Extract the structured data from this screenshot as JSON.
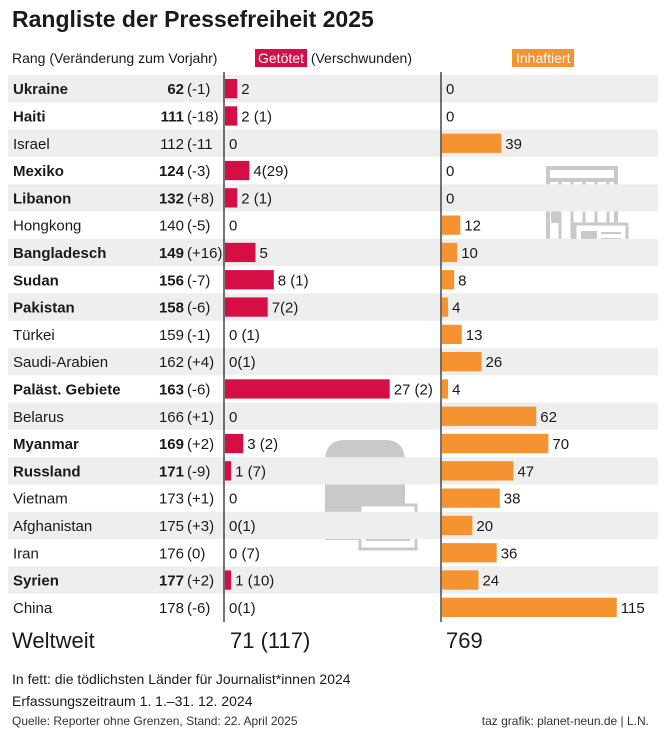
{
  "title": "Rangliste der Pressefreiheit 2025",
  "header": {
    "rank": "Rang (Veränderung zum Vorjahr)",
    "killed_box": "Getötet",
    "killed_rest": "(Verschwunden)",
    "jailed": "Inhaftiert"
  },
  "colors": {
    "killed": "#d50f45",
    "jailed": "#f59330",
    "illustration": "#c9c9c9"
  },
  "icons": {
    "killed_panel": "gravestone-newspaper-icon",
    "jailed_panel": "prison-cell-newspaper-icon"
  },
  "chart_data": {
    "type": "bar",
    "categories": [
      "Ukraine",
      "Haiti",
      "Israel",
      "Mexiko",
      "Libanon",
      "Hongkong",
      "Bangladesch",
      "Sudan",
      "Pakistan",
      "Türkei",
      "Saudi-Arabien",
      "Paläst. Gebiete",
      "Belarus",
      "Myanmar",
      "Russland",
      "Vietnam",
      "Afghanistan",
      "Iran",
      "Syrien",
      "China"
    ],
    "rank": [
      "62",
      "111",
      "112",
      "124",
      "132",
      "140",
      "149",
      "156",
      "158",
      "159",
      "162",
      "163",
      "166",
      "169",
      "171",
      "173",
      "175",
      "176",
      "177",
      "178"
    ],
    "rank_change": [
      "(-1)",
      "(-18)",
      "(-11",
      "(-3)",
      "(+8)",
      "(-5)",
      "(+16)",
      "(-7)",
      "(-6)",
      "(-1)",
      "(+4)",
      "(-6)",
      "(+1)",
      "(+2)",
      "(-9)",
      "(+1)",
      "(+3)",
      "(0)",
      "(+2)",
      "(-6)"
    ],
    "bold": [
      true,
      true,
      false,
      true,
      true,
      false,
      true,
      true,
      true,
      false,
      false,
      true,
      false,
      true,
      true,
      false,
      false,
      false,
      true,
      false
    ],
    "series": [
      {
        "name": "Getötet",
        "values": [
          2,
          2,
          0,
          4,
          2,
          0,
          5,
          8,
          7,
          0,
          0,
          27,
          0,
          3,
          1,
          0,
          0,
          0,
          1,
          0
        ],
        "labels": [
          "2",
          "2 (1)",
          "0",
          "4(29)",
          "2 (1)",
          "0",
          "5",
          "8 (1)",
          "7(2)",
          "0 (1)",
          "0(1)",
          "27 (2)",
          "0",
          "3 (2)",
          "1 (7)",
          "0",
          "0(1)",
          "0 (7)",
          "1 (10)",
          "0(1)"
        ]
      },
      {
        "name": "Inhaftiert",
        "values": [
          0,
          0,
          39,
          0,
          0,
          12,
          10,
          8,
          4,
          13,
          26,
          4,
          62,
          70,
          47,
          38,
          20,
          36,
          24,
          115
        ],
        "labels": [
          "0",
          "0",
          "39",
          "0",
          "0",
          "12",
          "10",
          "8",
          "4",
          "13",
          "26",
          "4",
          "62",
          "70",
          "47",
          "38",
          "20",
          "36",
          "24",
          "115"
        ]
      }
    ],
    "totals": {
      "label": "Weltweit",
      "killed": "71 (117)",
      "jailed": "769"
    }
  },
  "notes": {
    "bold_note": "In fett: die tödlichsten Länder für Journalist*innen 2024",
    "period": "Erfassungszeitraum 1. 1.–31. 12. 2024",
    "source": "Quelle: Reporter ohne Grenzen, Stand: 22. April 2025",
    "credit": "taz grafik: planet-neun.de | L.N."
  }
}
